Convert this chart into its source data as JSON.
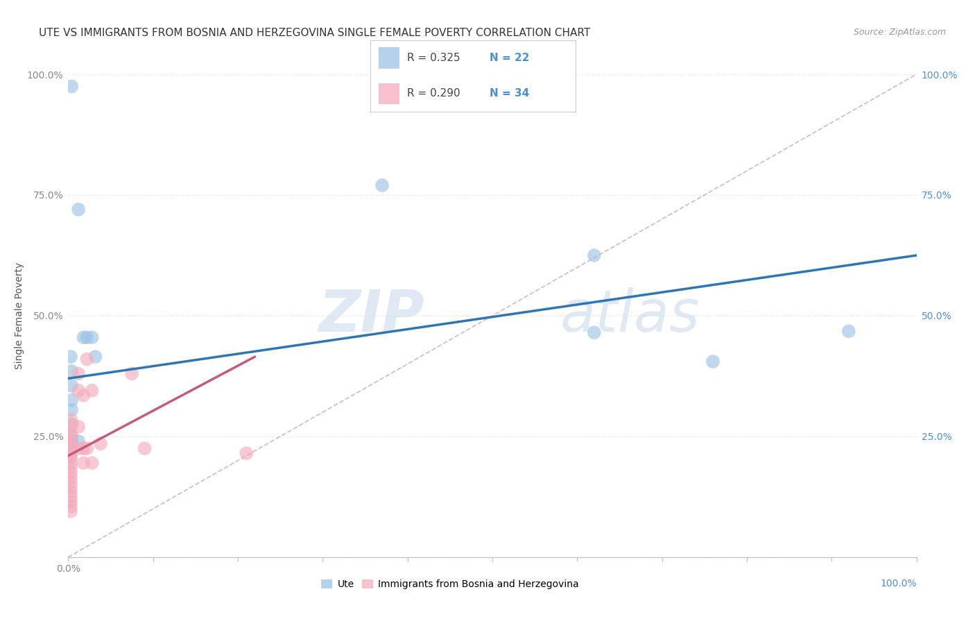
{
  "title": "UTE VS IMMIGRANTS FROM BOSNIA AND HERZEGOVINA SINGLE FEMALE POVERTY CORRELATION CHART",
  "source": "Source: ZipAtlas.com",
  "ylabel": "Single Female Poverty",
  "xlim": [
    0,
    1
  ],
  "ylim": [
    0,
    1
  ],
  "ytick_values": [
    0,
    0.25,
    0.5,
    0.75,
    1.0
  ],
  "ytick_labels": [
    "",
    "25.0%",
    "50.0%",
    "75.0%",
    "100.0%"
  ],
  "xtick_values": [
    0,
    0.1,
    0.2,
    0.3,
    0.4,
    0.5,
    0.6,
    0.7,
    0.8,
    0.9,
    1.0
  ],
  "legend_labels": [
    "Ute",
    "Immigrants from Bosnia and Herzegovina"
  ],
  "legend_R_N": [
    {
      "R": 0.325,
      "N": 22
    },
    {
      "R": 0.29,
      "N": 34
    }
  ],
  "blue_scatter": [
    [
      0.004,
      0.975
    ],
    [
      0.012,
      0.72
    ],
    [
      0.018,
      0.455
    ],
    [
      0.022,
      0.455
    ],
    [
      0.028,
      0.455
    ],
    [
      0.003,
      0.415
    ],
    [
      0.032,
      0.415
    ],
    [
      0.004,
      0.385
    ],
    [
      0.004,
      0.355
    ],
    [
      0.004,
      0.325
    ],
    [
      0.004,
      0.305
    ],
    [
      0.004,
      0.275
    ],
    [
      0.004,
      0.25
    ],
    [
      0.004,
      0.24
    ],
    [
      0.012,
      0.24
    ],
    [
      0.003,
      0.22
    ],
    [
      0.37,
      0.77
    ],
    [
      0.62,
      0.625
    ],
    [
      0.62,
      0.465
    ],
    [
      0.76,
      0.405
    ],
    [
      0.003,
      0.21
    ],
    [
      0.92,
      0.468
    ]
  ],
  "pink_scatter": [
    [
      0.003,
      0.285
    ],
    [
      0.003,
      0.27
    ],
    [
      0.003,
      0.255
    ],
    [
      0.003,
      0.245
    ],
    [
      0.003,
      0.235
    ],
    [
      0.003,
      0.225
    ],
    [
      0.003,
      0.215
    ],
    [
      0.003,
      0.205
    ],
    [
      0.003,
      0.195
    ],
    [
      0.003,
      0.185
    ],
    [
      0.003,
      0.175
    ],
    [
      0.003,
      0.165
    ],
    [
      0.003,
      0.155
    ],
    [
      0.003,
      0.145
    ],
    [
      0.003,
      0.135
    ],
    [
      0.003,
      0.125
    ],
    [
      0.003,
      0.115
    ],
    [
      0.003,
      0.105
    ],
    [
      0.003,
      0.095
    ],
    [
      0.012,
      0.38
    ],
    [
      0.012,
      0.345
    ],
    [
      0.012,
      0.27
    ],
    [
      0.012,
      0.225
    ],
    [
      0.018,
      0.335
    ],
    [
      0.018,
      0.225
    ],
    [
      0.018,
      0.195
    ],
    [
      0.022,
      0.41
    ],
    [
      0.022,
      0.225
    ],
    [
      0.028,
      0.345
    ],
    [
      0.028,
      0.195
    ],
    [
      0.038,
      0.235
    ],
    [
      0.075,
      0.38
    ],
    [
      0.09,
      0.225
    ],
    [
      0.21,
      0.215
    ]
  ],
  "blue_line": {
    "x0": 0.0,
    "y0": 0.37,
    "x1": 1.0,
    "y1": 0.625
  },
  "pink_line": {
    "x0": 0.0,
    "y0": 0.21,
    "x1": 0.22,
    "y1": 0.415
  },
  "diag_line": {
    "x0": 0.0,
    "y0": 0.0,
    "x1": 1.0,
    "y1": 1.0
  },
  "blue_color": "#9dc3e6",
  "pink_color": "#f4acbb",
  "blue_line_color": "#2e75b6",
  "pink_line_color": "#c55a7a",
  "diag_line_color": "#d0aab0",
  "watermark_zip": "ZIP",
  "watermark_atlas": "atlas",
  "background_color": "#ffffff",
  "grid_color": "#e0e0e0",
  "right_tick_color": "#4a90d9",
  "left_tick_color": "#888888"
}
